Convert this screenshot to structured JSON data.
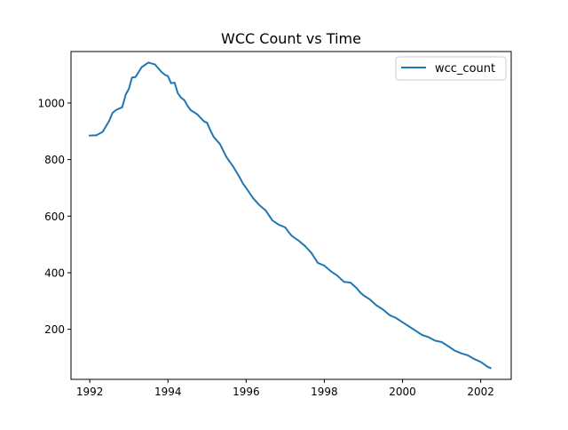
{
  "chart_data": {
    "type": "line",
    "title": "WCC Count vs Time",
    "xlabel": "",
    "ylabel": "",
    "xlim": [
      1991.52,
      2002.78
    ],
    "ylim": [
      23,
      1182
    ],
    "xticks": [
      1992,
      1994,
      1996,
      1998,
      2000,
      2002
    ],
    "xtick_labels": [
      "1992",
      "1994",
      "1996",
      "1998",
      "2000",
      "2002"
    ],
    "yticks": [
      200,
      400,
      600,
      800,
      1000
    ],
    "ytick_labels": [
      "200",
      "400",
      "600",
      "800",
      "1000"
    ],
    "grid": false,
    "legend": {
      "placement": "top-right",
      "entries": [
        "wcc_count"
      ]
    },
    "series": [
      {
        "name": "wcc_count",
        "color": "#1f77b4",
        "x": [
          1992.0,
          1992.17,
          1992.33,
          1992.5,
          1992.58,
          1992.67,
          1992.83,
          1992.92,
          1993.0,
          1993.08,
          1993.17,
          1993.33,
          1993.5,
          1993.58,
          1993.67,
          1993.83,
          1993.92,
          1994.0,
          1994.08,
          1994.17,
          1994.25,
          1994.33,
          1994.42,
          1994.5,
          1994.58,
          1994.75,
          1994.92,
          1995.0,
          1995.08,
          1995.17,
          1995.33,
          1995.5,
          1995.67,
          1995.83,
          1995.92,
          1996.0,
          1996.17,
          1996.33,
          1996.5,
          1996.67,
          1996.83,
          1997.0,
          1997.08,
          1997.17,
          1997.33,
          1997.5,
          1997.67,
          1997.83,
          1998.0,
          1998.17,
          1998.33,
          1998.5,
          1998.67,
          1998.83,
          1998.92,
          1999.0,
          1999.17,
          1999.33,
          1999.5,
          1999.67,
          1999.83,
          2000.0,
          2000.17,
          2000.33,
          2000.5,
          2000.67,
          2000.83,
          2001.0,
          2001.17,
          2001.33,
          2001.5,
          2001.67,
          2001.83,
          2002.0,
          2002.17,
          2002.25
        ],
        "values": [
          885,
          886,
          898,
          938,
          965,
          975,
          985,
          1030,
          1050,
          1090,
          1092,
          1127,
          1143,
          1140,
          1136,
          1110,
          1100,
          1095,
          1070,
          1072,
          1035,
          1020,
          1010,
          990,
          975,
          960,
          935,
          930,
          905,
          880,
          855,
          808,
          775,
          738,
          715,
          700,
          665,
          640,
          620,
          585,
          570,
          560,
          545,
          530,
          515,
          495,
          470,
          435,
          425,
          405,
          390,
          368,
          365,
          345,
          330,
          320,
          305,
          285,
          270,
          250,
          240,
          225,
          210,
          195,
          180,
          172,
          160,
          155,
          140,
          125,
          115,
          108,
          95,
          85,
          68,
          63
        ]
      }
    ]
  }
}
